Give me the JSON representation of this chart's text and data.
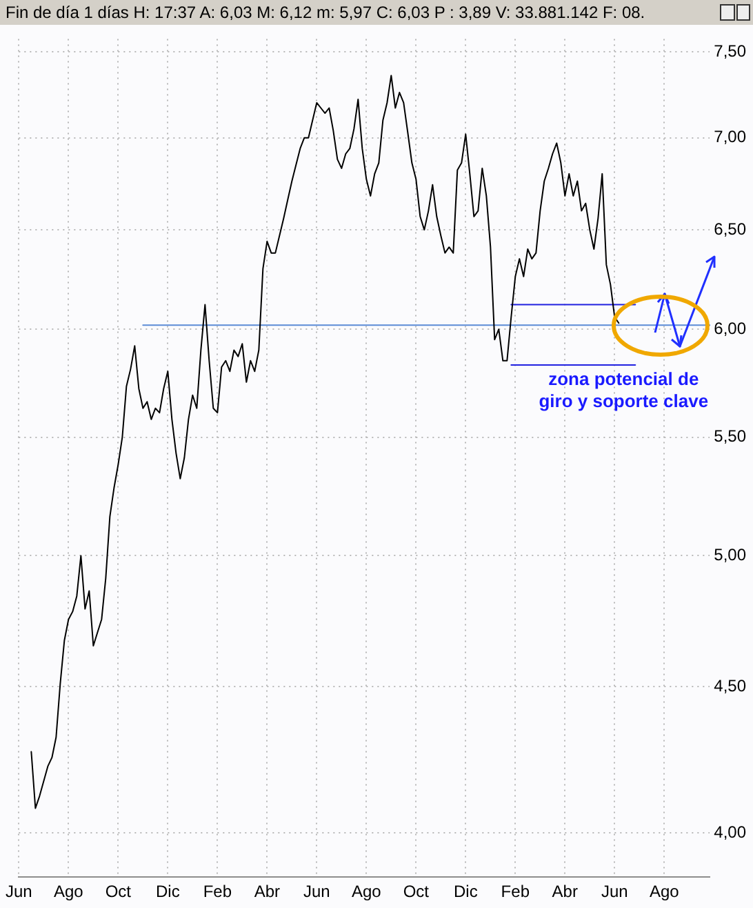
{
  "chart_data": {
    "type": "line",
    "title": "Fin de día 1 días H: 17:37 A: 6,03 M: 6,12 m: 5,97 C: 6,03 P : 3,89 V: 33.881.142 F: 08.",
    "annotations": [
      "zona potencial de giro y soporte clave"
    ],
    "log": "y",
    "grid": true,
    "marker": "none",
    "line_style": "solid",
    "categories": [
      "Jun",
      null,
      null,
      null,
      null,
      null,
      null,
      null,
      null,
      null,
      null,
      null,
      "Ago",
      null,
      null,
      null,
      null,
      null,
      null,
      null,
      null,
      null,
      null,
      null,
      "Oct",
      null,
      null,
      null,
      null,
      null,
      null,
      null,
      null,
      null,
      null,
      null,
      "Dic",
      null,
      null,
      null,
      null,
      null,
      null,
      null,
      null,
      null,
      null,
      null,
      "Feb",
      null,
      null,
      null,
      null,
      null,
      null,
      null,
      null,
      null,
      null,
      null,
      "Abr",
      null,
      null,
      null,
      null,
      null,
      null,
      null,
      null,
      null,
      null,
      null,
      "Jun",
      null,
      null,
      null,
      null,
      null,
      null,
      null,
      null,
      null,
      null,
      null,
      "Ago",
      null,
      null,
      null,
      null,
      null,
      null,
      null,
      null,
      null,
      null,
      null,
      "Oct",
      null,
      null,
      null,
      null,
      null,
      null,
      null,
      null,
      null,
      null,
      null,
      "Dic",
      null,
      null,
      null,
      null,
      null,
      null,
      null,
      null,
      null,
      null,
      null,
      "Feb",
      null,
      null,
      null,
      null,
      null,
      null,
      null,
      null,
      null,
      null,
      null,
      "Abr",
      null,
      null,
      null,
      null,
      null,
      null,
      null,
      null,
      null,
      null,
      null,
      "Jun",
      null,
      null,
      null,
      null,
      null,
      null,
      null,
      null,
      null,
      null,
      null,
      "Ago",
      null,
      null,
      null,
      null,
      null,
      null,
      null,
      null,
      null,
      null,
      null
    ],
    "ylim": [
      3.86,
      7.58
    ],
    "yticks": [
      {
        "value": 4,
        "label": "4,00"
      },
      {
        "value": 4.5,
        "label": "4,50"
      },
      {
        "value": 5,
        "label": "5,00"
      },
      {
        "value": 5.5,
        "label": "5,50"
      },
      {
        "value": 6,
        "label": "6,00"
      },
      {
        "value": 6.5,
        "label": "6,50"
      },
      {
        "value": 7,
        "label": "7,00"
      },
      {
        "value": 7.5,
        "label": "7,50"
      }
    ],
    "series": [
      {
        "color": "#000000",
        "values": [
          null,
          null,
          null,
          4.27,
          4.08,
          4.12,
          4.17,
          4.22,
          4.25,
          4.32,
          4.51,
          4.67,
          4.75,
          4.78,
          4.84,
          5.0,
          4.79,
          4.86,
          4.65,
          4.7,
          4.75,
          4.91,
          5.16,
          5.28,
          5.38,
          5.5,
          5.73,
          5.81,
          5.92,
          5.72,
          5.63,
          5.66,
          5.58,
          5.63,
          5.61,
          5.72,
          5.8,
          5.58,
          5.43,
          5.32,
          5.41,
          5.58,
          5.69,
          5.63,
          5.9,
          6.12,
          5.85,
          5.63,
          5.61,
          5.82,
          5.85,
          5.8,
          5.9,
          5.87,
          5.93,
          5.75,
          5.85,
          5.8,
          5.9,
          6.3,
          6.44,
          6.38,
          6.38,
          6.47,
          6.56,
          6.66,
          6.76,
          6.85,
          6.94,
          7.0,
          7.0,
          7.1,
          7.2,
          7.17,
          7.14,
          7.17,
          7.04,
          6.88,
          6.83,
          6.91,
          6.94,
          7.05,
          7.22,
          6.94,
          6.77,
          6.68,
          6.8,
          6.86,
          7.1,
          7.2,
          7.36,
          7.17,
          7.26,
          7.2,
          7.03,
          6.86,
          6.77,
          6.57,
          6.5,
          6.6,
          6.74,
          6.57,
          6.47,
          6.38,
          6.41,
          6.38,
          6.82,
          6.86,
          7.02,
          6.8,
          6.57,
          6.6,
          6.83,
          6.68,
          6.41,
          5.95,
          6.0,
          5.85,
          5.85,
          6.06,
          6.26,
          6.35,
          6.26,
          6.4,
          6.35,
          6.38,
          6.6,
          6.76,
          6.83,
          6.91,
          6.97,
          6.86,
          6.68,
          6.8,
          6.68,
          6.76,
          6.6,
          6.64,
          6.5,
          6.4,
          6.56,
          6.8,
          6.32,
          6.22,
          6.06,
          6.03,
          null,
          null,
          null,
          null,
          null,
          null,
          null,
          null,
          null,
          null,
          null,
          null,
          null,
          null,
          null,
          null,
          null,
          null,
          null,
          null,
          null,
          null
        ]
      },
      {
        "color": "#5b8bd5",
        "values": [
          null,
          null,
          null,
          null,
          null,
          null,
          null,
          null,
          null,
          null,
          null,
          null,
          null,
          null,
          null,
          null,
          null,
          null,
          null,
          null,
          null,
          null,
          null,
          null,
          null,
          null,
          null,
          null,
          null,
          null,
          6.02,
          6.02,
          6.02,
          6.02,
          6.02,
          6.02,
          6.02,
          6.02,
          6.02,
          6.02,
          6.02,
          6.02,
          6.02,
          6.02,
          6.02,
          6.02,
          6.02,
          6.02,
          6.02,
          6.02,
          6.02,
          6.02,
          6.02,
          6.02,
          6.02,
          6.02,
          6.02,
          6.02,
          6.02,
          6.02,
          6.02,
          6.02,
          6.02,
          6.02,
          6.02,
          6.02,
          6.02,
          6.02,
          6.02,
          6.02,
          6.02,
          6.02,
          6.02,
          6.02,
          6.02,
          6.02,
          6.02,
          6.02,
          6.02,
          6.02,
          6.02,
          6.02,
          6.02,
          6.02,
          6.02,
          6.02,
          6.02,
          6.02,
          6.02,
          6.02,
          6.02,
          6.02,
          6.02,
          6.02,
          6.02,
          6.02,
          6.02,
          6.02,
          6.02,
          6.02,
          6.02,
          6.02,
          6.02,
          6.02,
          6.02,
          6.02,
          6.02,
          6.02,
          6.02,
          6.02,
          6.02,
          6.02,
          6.02,
          6.02,
          6.02,
          6.02,
          6.02,
          6.02,
          6.02,
          6.02,
          6.02,
          6.02,
          6.02,
          6.02,
          6.02,
          6.02,
          6.02,
          6.02,
          6.02,
          6.02,
          6.02,
          6.02,
          6.02,
          6.02,
          6.02,
          6.02,
          6.02,
          6.02,
          6.02,
          6.02,
          6.02,
          6.02,
          6.02,
          6.02,
          6.02,
          6.02,
          6.02,
          6.02,
          6.02,
          6.02,
          6.02,
          6.02,
          6.02,
          6.02,
          6.02,
          6.02,
          6.02,
          6.02,
          6.02,
          6.02,
          6.02,
          6.02,
          6.02,
          6.02,
          6.02,
          6.02,
          6.02,
          6.02
        ]
      },
      {
        "color": "#2020e0",
        "values": [
          null,
          null,
          null,
          null,
          null,
          null,
          null,
          null,
          null,
          null,
          null,
          null,
          null,
          null,
          null,
          null,
          null,
          null,
          null,
          null,
          null,
          null,
          null,
          null,
          null,
          null,
          null,
          null,
          null,
          null,
          null,
          null,
          null,
          null,
          null,
          null,
          null,
          null,
          null,
          null,
          null,
          null,
          null,
          null,
          null,
          null,
          null,
          null,
          null,
          null,
          null,
          null,
          null,
          null,
          null,
          null,
          null,
          null,
          null,
          null,
          null,
          null,
          null,
          null,
          null,
          null,
          null,
          null,
          null,
          null,
          null,
          null,
          null,
          null,
          null,
          null,
          null,
          null,
          null,
          null,
          null,
          null,
          null,
          null,
          null,
          null,
          null,
          null,
          null,
          null,
          null,
          null,
          null,
          null,
          null,
          null,
          null,
          null,
          null,
          null,
          null,
          null,
          null,
          null,
          null,
          null,
          null,
          null,
          null,
          null,
          null,
          null,
          null,
          null,
          null,
          null,
          null,
          null,
          null,
          6.12,
          6.12,
          6.12,
          6.12,
          6.12,
          6.12,
          6.12,
          6.12,
          6.12,
          6.12,
          6.12,
          6.12,
          6.12,
          6.12,
          6.12,
          6.12,
          6.12,
          6.12,
          6.12,
          6.12,
          6.12,
          6.12,
          6.12,
          6.12,
          6.12,
          6.12,
          6.12,
          6.12,
          6.12,
          6.12,
          6.12,
          null,
          null,
          null,
          null,
          null,
          null,
          null,
          null,
          null,
          null,
          null,
          null,
          null,
          null,
          null,
          null,
          null,
          null
        ]
      },
      {
        "color": "#2020e0",
        "values": [
          null,
          null,
          null,
          null,
          null,
          null,
          null,
          null,
          null,
          null,
          null,
          null,
          null,
          null,
          null,
          null,
          null,
          null,
          null,
          null,
          null,
          null,
          null,
          null,
          null,
          null,
          null,
          null,
          null,
          null,
          null,
          null,
          null,
          null,
          null,
          null,
          null,
          null,
          null,
          null,
          null,
          null,
          null,
          null,
          null,
          null,
          null,
          null,
          null,
          null,
          null,
          null,
          null,
          null,
          null,
          null,
          null,
          null,
          null,
          null,
          null,
          null,
          null,
          null,
          null,
          null,
          null,
          null,
          null,
          null,
          null,
          null,
          null,
          null,
          null,
          null,
          null,
          null,
          null,
          null,
          null,
          null,
          null,
          null,
          null,
          null,
          null,
          null,
          null,
          null,
          null,
          null,
          null,
          null,
          null,
          null,
          null,
          null,
          null,
          null,
          null,
          null,
          null,
          null,
          null,
          null,
          null,
          null,
          null,
          null,
          null,
          null,
          null,
          null,
          null,
          null,
          null,
          null,
          null,
          5.83,
          5.83,
          5.83,
          5.83,
          5.83,
          5.83,
          5.83,
          5.83,
          5.83,
          5.83,
          5.83,
          5.83,
          5.83,
          5.83,
          5.83,
          5.83,
          5.83,
          5.83,
          5.83,
          5.83,
          5.83,
          5.83,
          5.83,
          5.83,
          5.83,
          5.83,
          5.83,
          5.83,
          5.83,
          5.83,
          5.83,
          null,
          null,
          null,
          null,
          null,
          null,
          null,
          null,
          null,
          null,
          null,
          null,
          null,
          null,
          null,
          null,
          null,
          null
        ]
      }
    ]
  }
}
